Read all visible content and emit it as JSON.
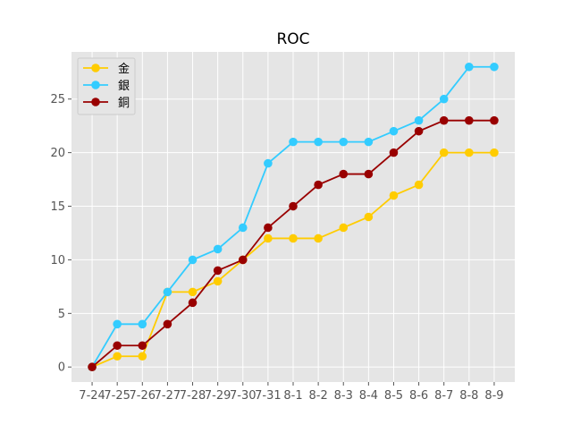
{
  "chart_data": {
    "type": "line",
    "title": "ROC",
    "xlabel": "",
    "ylabel": "",
    "categories": [
      "7-24",
      "7-25",
      "7-26",
      "7-27",
      "7-28",
      "7-29",
      "7-30",
      "7-31",
      "8-1",
      "8-2",
      "8-3",
      "8-4",
      "8-5",
      "8-6",
      "8-7",
      "8-8",
      "8-9"
    ],
    "ylim": [
      -1.4,
      29.4
    ],
    "yticks": [
      0,
      5,
      10,
      15,
      20,
      25
    ],
    "grid": true,
    "legend_position": "top-left",
    "background": "#e5e5e5",
    "series": [
      {
        "name": "金",
        "color": "#ffcc00",
        "values": [
          0,
          1,
          1,
          7,
          7,
          8,
          10,
          12,
          12,
          12,
          13,
          14,
          16,
          17,
          20,
          20,
          20
        ]
      },
      {
        "name": "銀",
        "color": "#33ccff",
        "values": [
          0,
          4,
          4,
          7,
          10,
          11,
          13,
          19,
          21,
          21,
          21,
          21,
          22,
          23,
          25,
          28,
          28
        ]
      },
      {
        "name": "銅",
        "color": "#990000",
        "values": [
          0,
          2,
          2,
          4,
          6,
          9,
          10,
          13,
          15,
          17,
          18,
          18,
          20,
          22,
          23,
          23,
          23
        ]
      }
    ]
  }
}
